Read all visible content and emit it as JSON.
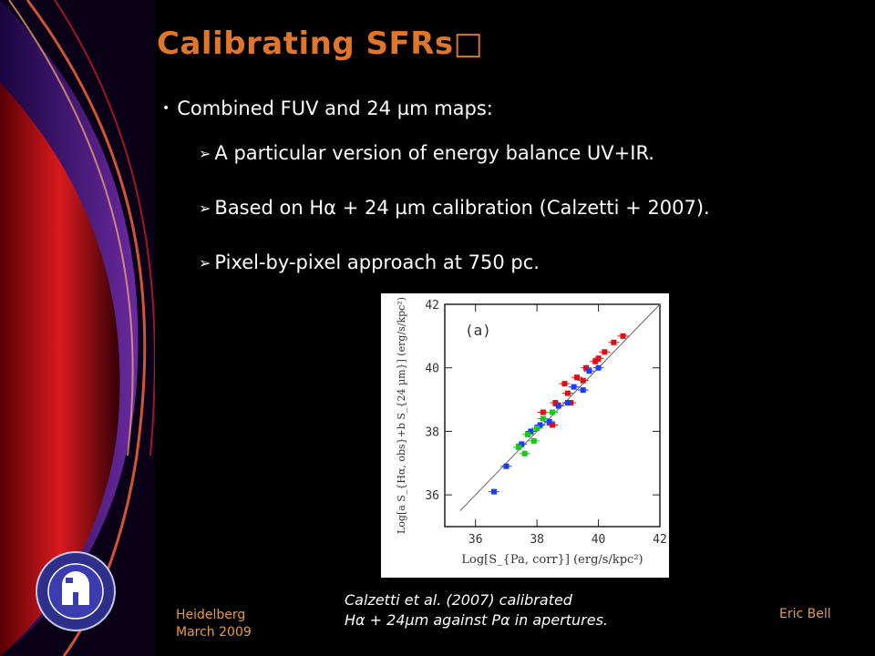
{
  "slide": {
    "title": "Calibrating SFRs□",
    "bullet_main": "Combined FUV and 24 µm maps:",
    "sub_bullets": [
      "A particular version of energy balance UV+IR.",
      "Based on Hα + 24 µm calibration (Calzetti + 2007).",
      "Pixel-by-pixel approach at 750 pc."
    ],
    "caption_line1": "Calzetti et al. (2007) calibrated",
    "caption_line2": "Hα + 24µm against Pα in apertures.",
    "footer_left_line1": "Heidelberg",
    "footer_left_line2": "March 2009",
    "footer_right": "Eric Bell",
    "accent_color": "#e0762a",
    "footer_color": "#e89b3a"
  },
  "chart_data": {
    "type": "scatter",
    "panel_label": "(a)",
    "xlabel": "Log[S_{Pa, corr}] (erg/s/kpc²)",
    "ylabel": "Log[a S_{Hα, obs}+b S_{24 µm}] (erg/s/kpc²)",
    "xlim": [
      35,
      42
    ],
    "ylim": [
      35,
      42
    ],
    "xticks": [
      "36",
      "38",
      "40",
      "42"
    ],
    "yticks": [
      "36",
      "38",
      "40",
      "42"
    ],
    "series": [
      {
        "color": "#e01010",
        "points": [
          [
            38.2,
            38.6
          ],
          [
            38.6,
            38.9
          ],
          [
            39.0,
            39.2
          ],
          [
            39.3,
            39.7
          ],
          [
            39.6,
            40.0
          ],
          [
            39.9,
            40.2
          ],
          [
            40.2,
            40.5
          ],
          [
            40.5,
            40.8
          ],
          [
            40.8,
            41.0
          ],
          [
            38.9,
            39.5
          ],
          [
            39.5,
            39.6
          ],
          [
            40.0,
            40.3
          ],
          [
            38.5,
            38.2
          ],
          [
            39.1,
            38.9
          ]
        ]
      },
      {
        "color": "#1a3cff",
        "points": [
          [
            37.5,
            37.6
          ],
          [
            37.8,
            38.0
          ],
          [
            38.1,
            38.2
          ],
          [
            38.4,
            38.3
          ],
          [
            38.7,
            38.8
          ],
          [
            39.0,
            38.9
          ],
          [
            39.2,
            39.4
          ],
          [
            39.5,
            39.3
          ],
          [
            39.7,
            39.9
          ],
          [
            40.0,
            40.0
          ],
          [
            37.0,
            36.9
          ],
          [
            36.6,
            36.1
          ]
        ]
      },
      {
        "color": "#19c819",
        "points": [
          [
            37.4,
            37.5
          ],
          [
            37.7,
            37.9
          ],
          [
            37.9,
            37.7
          ],
          [
            38.2,
            38.4
          ],
          [
            38.5,
            38.6
          ],
          [
            38.0,
            38.1
          ],
          [
            37.6,
            37.3
          ]
        ]
      }
    ],
    "fit_line": [
      [
        35.5,
        35.5
      ],
      [
        42,
        42
      ]
    ]
  }
}
